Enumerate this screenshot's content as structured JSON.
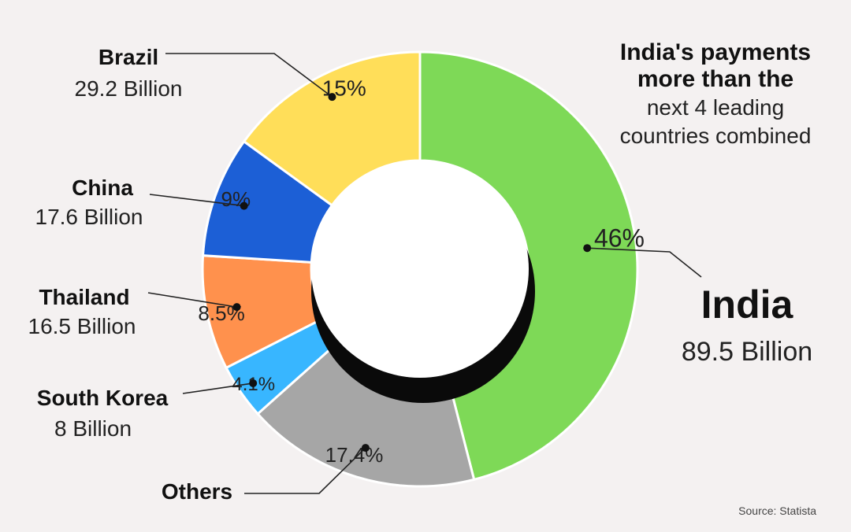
{
  "headline": {
    "bold_lines": [
      "India's payments",
      "more than the"
    ],
    "lines": [
      "next 4 leading",
      "countries combined"
    ]
  },
  "source": "Source: Statista",
  "chart_data": {
    "type": "pie",
    "variant": "donut",
    "slices": [
      {
        "name": "India",
        "percent": 46,
        "value_label": "89.5 Billion",
        "pct_label": "46%",
        "color": "#7ed957"
      },
      {
        "name": "Others",
        "percent": 17.4,
        "value_label": "",
        "pct_label": "17.4%",
        "color": "#a6a6a6"
      },
      {
        "name": "South Korea",
        "percent": 4.1,
        "value_label": "8 Billion",
        "pct_label": "4.1%",
        "color": "#38b6ff"
      },
      {
        "name": "Thailand",
        "percent": 8.5,
        "value_label": "16.5 Billion",
        "pct_label": "8.5%",
        "color": "#ff914d"
      },
      {
        "name": "China",
        "percent": 9,
        "value_label": "17.6 Billion",
        "pct_label": "9%",
        "color": "#1c5fd6"
      },
      {
        "name": "Brazil",
        "percent": 15,
        "value_label": "29.2 Billion",
        "pct_label": "15%",
        "color": "#ffde59"
      }
    ]
  }
}
